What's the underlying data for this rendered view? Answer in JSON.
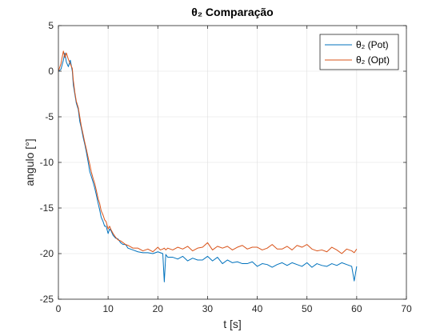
{
  "chart_data": {
    "type": "line",
    "title": "θ₂ Comparação",
    "xlabel": "t [s]",
    "ylabel": "angulo [°]",
    "xlim": [
      0,
      70
    ],
    "ylim": [
      -25,
      5
    ],
    "xticks": [
      "0",
      "10",
      "20",
      "30",
      "40",
      "50",
      "60",
      "70"
    ],
    "yticks": [
      "5",
      "0",
      "-5",
      "-10",
      "-15",
      "-20",
      "-25"
    ],
    "grid": true,
    "legend_position": "top-right",
    "series": [
      {
        "name": "θ₂ (Pot)",
        "color": "#0072BD",
        "x": [
          0,
          0.5,
          1,
          1.3,
          1.6,
          2,
          2.4,
          2.8,
          3,
          3.3,
          3.6,
          4,
          4.3,
          4.6,
          5,
          5.3,
          5.6,
          6,
          6.3,
          6.6,
          7,
          7.3,
          7.6,
          8,
          8.3,
          8.6,
          9,
          9.3,
          9.6,
          10,
          10.3,
          10.6,
          11,
          11.5,
          12,
          12.5,
          13,
          13.5,
          14,
          15,
          16,
          17,
          18,
          19,
          20,
          20.5,
          21,
          21.3,
          21.6,
          22,
          23,
          24,
          25,
          26,
          27,
          28,
          29,
          30,
          31,
          32,
          33,
          34,
          35,
          36,
          37,
          38,
          39,
          40,
          41,
          42,
          43,
          44,
          45,
          46,
          47,
          48,
          49,
          50,
          51,
          52,
          53,
          54,
          55,
          56,
          57,
          58,
          59,
          59.5,
          60
        ],
        "values": [
          0,
          0.2,
          1.2,
          2.0,
          1.0,
          0.5,
          1.2,
          0.0,
          -1.5,
          -2.5,
          -3.5,
          -4.2,
          -5.5,
          -6.2,
          -7.3,
          -8.0,
          -8.8,
          -10.0,
          -11.0,
          -11.5,
          -12.2,
          -12.8,
          -13.5,
          -14.5,
          -15.2,
          -16.0,
          -16.5,
          -17.0,
          -17.0,
          -17.8,
          -17.3,
          -17.5,
          -18.0,
          -18.3,
          -18.4,
          -18.8,
          -19.0,
          -19.0,
          -19.4,
          -19.6,
          -19.8,
          -19.9,
          -19.9,
          -20.0,
          -19.8,
          -19.9,
          -20.0,
          -23.1,
          -20.1,
          -20.4,
          -20.4,
          -20.6,
          -20.3,
          -20.8,
          -20.5,
          -20.7,
          -20.7,
          -20.3,
          -20.8,
          -20.4,
          -21.1,
          -20.7,
          -21.0,
          -20.9,
          -21.1,
          -21.1,
          -20.9,
          -21.4,
          -21.1,
          -21.2,
          -21.5,
          -21.2,
          -21.0,
          -21.3,
          -21.0,
          -21.2,
          -21.4,
          -21.0,
          -21.5,
          -21.1,
          -21.3,
          -21.4,
          -21.1,
          -21.3,
          -21.0,
          -21.2,
          -21.4,
          -23.0,
          -21.4
        ]
      },
      {
        "name": "θ₂ (Opt)",
        "color": "#D95319",
        "x": [
          0,
          0.5,
          1,
          1.3,
          1.6,
          2,
          2.4,
          2.8,
          3,
          3.3,
          3.6,
          4,
          4.3,
          4.6,
          5,
          5.3,
          5.6,
          6,
          6.3,
          6.6,
          7,
          7.3,
          7.6,
          8,
          8.3,
          8.6,
          9,
          9.3,
          9.6,
          10,
          10.3,
          10.6,
          11,
          11.5,
          12,
          12.5,
          13,
          13.5,
          14,
          15,
          16,
          17,
          18,
          19,
          20,
          20.5,
          21,
          21.3,
          21.6,
          22,
          23,
          24,
          25,
          26,
          27,
          28,
          29,
          30,
          31,
          32,
          33,
          34,
          35,
          36,
          37,
          38,
          39,
          40,
          41,
          42,
          43,
          44,
          45,
          46,
          47,
          48,
          49,
          50,
          51,
          52,
          53,
          54,
          55,
          56,
          57,
          58,
          59,
          59.5,
          60
        ],
        "values": [
          0,
          0.8,
          2.2,
          1.5,
          2.0,
          1.3,
          0.8,
          0.3,
          -1.0,
          -2.3,
          -3.3,
          -4.0,
          -5.0,
          -6.0,
          -7.0,
          -7.8,
          -8.5,
          -9.5,
          -10.2,
          -11.0,
          -11.8,
          -12.3,
          -13.0,
          -14.0,
          -14.5,
          -15.3,
          -15.8,
          -16.3,
          -16.5,
          -17.3,
          -17.0,
          -17.4,
          -17.8,
          -18.2,
          -18.5,
          -18.6,
          -18.8,
          -19.0,
          -19.1,
          -19.4,
          -19.4,
          -19.7,
          -19.5,
          -19.8,
          -19.3,
          -19.6,
          -19.5,
          -19.4,
          -19.6,
          -19.4,
          -19.6,
          -19.3,
          -19.5,
          -19.2,
          -19.7,
          -19.4,
          -19.3,
          -18.8,
          -19.6,
          -19.2,
          -19.4,
          -19.2,
          -19.6,
          -19.3,
          -19.1,
          -19.5,
          -19.3,
          -19.3,
          -19.6,
          -19.4,
          -19.0,
          -19.5,
          -19.5,
          -19.2,
          -19.6,
          -19.1,
          -19.3,
          -19.0,
          -19.5,
          -19.7,
          -19.6,
          -19.8,
          -19.3,
          -19.6,
          -20.0,
          -19.5,
          -19.7,
          -19.9,
          -19.5
        ]
      }
    ]
  }
}
